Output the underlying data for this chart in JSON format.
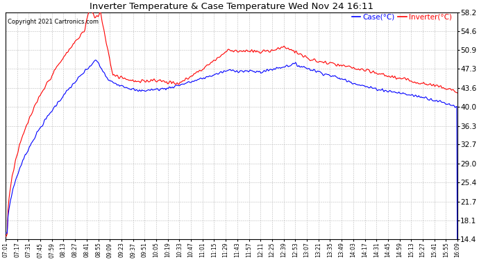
{
  "title": "Inverter Temperature & Case Temperature Wed Nov 24 16:11",
  "copyright": "Copyright 2021 Cartronics.com",
  "legend_case": "Case(°C)",
  "legend_inverter": "Inverter(°C)",
  "yticks": [
    14.4,
    18.1,
    21.7,
    25.4,
    29.0,
    32.7,
    36.3,
    40.0,
    43.6,
    47.3,
    50.9,
    54.6,
    58.2
  ],
  "ymin": 14.4,
  "ymax": 58.2,
  "case_color": "blue",
  "inverter_color": "red",
  "background_color": "#ffffff",
  "grid_color": "#bbbbbb",
  "xtick_labels": [
    "07:01",
    "07:17",
    "07:31",
    "07:45",
    "07:59",
    "08:13",
    "08:27",
    "08:41",
    "08:55",
    "09:09",
    "09:23",
    "09:37",
    "09:51",
    "10:05",
    "10:19",
    "10:33",
    "10:47",
    "11:01",
    "11:15",
    "11:29",
    "11:43",
    "11:57",
    "12:11",
    "12:25",
    "12:39",
    "12:53",
    "13:07",
    "13:21",
    "13:35",
    "13:49",
    "14:03",
    "14:17",
    "14:31",
    "14:45",
    "14:59",
    "15:13",
    "15:27",
    "15:41",
    "15:55",
    "16:09"
  ],
  "figwidth": 6.9,
  "figheight": 3.75,
  "dpi": 100
}
